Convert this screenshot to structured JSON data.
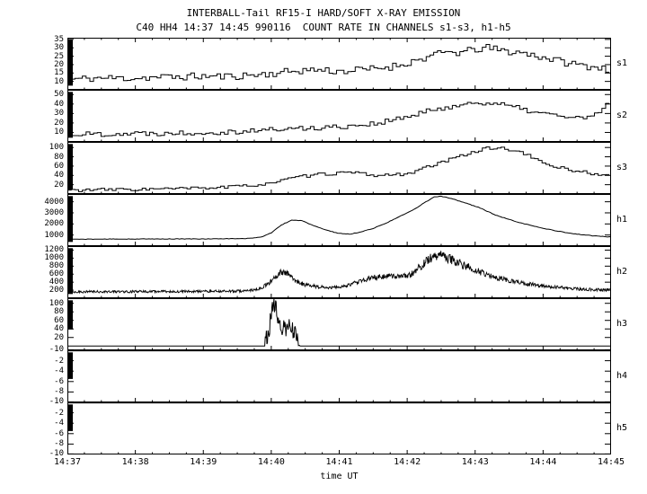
{
  "chart_data": {
    "type": "line",
    "title": "INTERBALL-Tail RF15-I HARD/SOFT X-RAY EMISSION",
    "subtitle": "C40 HH4 14:37 14:45 990116  COUNT RATE IN CHANNELS s1-s3, h1-h5",
    "xlabel": "time UT",
    "x_ticks": [
      "14:37",
      "14:38",
      "14:39",
      "14:40",
      "14:41",
      "14:42",
      "14:43",
      "14:44",
      "14:45"
    ],
    "x_range_minutes": [
      0,
      8
    ],
    "grid": false,
    "legend": "none",
    "panels": [
      {
        "label": "s1",
        "style": "step",
        "seed": 11,
        "ymin": 5,
        "ymax": 36,
        "yticks": [
          35,
          30,
          25,
          20,
          15,
          10
        ],
        "noise": 2.2,
        "bin": 0.055,
        "left_bar": [
          0.08,
          0.96
        ],
        "points": [
          [
            0,
            11
          ],
          [
            0.4,
            12
          ],
          [
            0.9,
            12
          ],
          [
            1.4,
            12.5
          ],
          [
            1.9,
            13
          ],
          [
            2.4,
            13
          ],
          [
            2.8,
            14
          ],
          [
            3.1,
            15
          ],
          [
            3.4,
            16.5
          ],
          [
            3.7,
            17
          ],
          [
            4,
            16
          ],
          [
            4.4,
            17
          ],
          [
            4.8,
            19
          ],
          [
            5.1,
            22
          ],
          [
            5.35,
            25
          ],
          [
            5.6,
            27.5
          ],
          [
            5.8,
            27
          ],
          [
            6,
            29
          ],
          [
            6.2,
            30
          ],
          [
            6.45,
            28
          ],
          [
            6.7,
            27
          ],
          [
            6.95,
            25
          ],
          [
            7.2,
            22.5
          ],
          [
            7.5,
            20
          ],
          [
            7.8,
            18.5
          ],
          [
            8,
            17
          ]
        ]
      },
      {
        "label": "s2",
        "style": "step",
        "seed": 22,
        "ymin": 0,
        "ymax": 55,
        "yticks": [
          50,
          40,
          30,
          20,
          10
        ],
        "noise": 2.8,
        "bin": 0.055,
        "left_bar": [
          0.08,
          0.96
        ],
        "points": [
          [
            0,
            8
          ],
          [
            0.5,
            8.5
          ],
          [
            1,
            9
          ],
          [
            1.5,
            9.5
          ],
          [
            2,
            10
          ],
          [
            2.5,
            11
          ],
          [
            3,
            13
          ],
          [
            3.5,
            14.5
          ],
          [
            4,
            16
          ],
          [
            4.3,
            18
          ],
          [
            4.6,
            20
          ],
          [
            5,
            26
          ],
          [
            5.3,
            32
          ],
          [
            5.6,
            37
          ],
          [
            5.9,
            40
          ],
          [
            6.1,
            42
          ],
          [
            6.35,
            40
          ],
          [
            6.6,
            36
          ],
          [
            7,
            30
          ],
          [
            7.3,
            27
          ],
          [
            7.6,
            25
          ],
          [
            7.85,
            30
          ],
          [
            8,
            43
          ]
        ]
      },
      {
        "label": "s3",
        "style": "step",
        "seed": 33,
        "ymin": 0,
        "ymax": 112,
        "yticks": [
          100,
          80,
          60,
          40,
          20
        ],
        "noise": 3.5,
        "bin": 0.055,
        "left_bar": [
          0.08,
          0.96
        ],
        "points": [
          [
            0,
            8
          ],
          [
            0.5,
            9
          ],
          [
            1,
            10
          ],
          [
            1.5,
            11
          ],
          [
            2,
            13
          ],
          [
            2.4,
            15
          ],
          [
            2.7,
            18
          ],
          [
            3,
            24
          ],
          [
            3.2,
            30
          ],
          [
            3.4,
            36
          ],
          [
            3.6,
            40
          ],
          [
            3.8,
            43
          ],
          [
            4,
            45
          ],
          [
            4.2,
            46
          ],
          [
            4.4,
            42
          ],
          [
            4.6,
            40
          ],
          [
            4.8,
            41
          ],
          [
            5,
            44
          ],
          [
            5.2,
            52
          ],
          [
            5.4,
            62
          ],
          [
            5.6,
            72
          ],
          [
            5.8,
            82
          ],
          [
            6,
            92
          ],
          [
            6.2,
            98
          ],
          [
            6.35,
            100
          ],
          [
            6.5,
            96
          ],
          [
            6.7,
            88
          ],
          [
            6.9,
            75
          ],
          [
            7.1,
            62
          ],
          [
            7.3,
            55
          ],
          [
            7.5,
            50
          ],
          [
            7.7,
            45
          ],
          [
            8,
            38
          ]
        ]
      },
      {
        "label": "h1",
        "style": "line",
        "seed": 44,
        "ymin": 0,
        "ymax": 4700,
        "yticks": [
          4000,
          3000,
          2000,
          1000
        ],
        "noise": 22,
        "sample": 0.025,
        "left_bar": [
          0.08,
          0.96
        ],
        "points": [
          [
            0,
            620
          ],
          [
            1,
            640
          ],
          [
            2,
            650
          ],
          [
            2.6,
            680
          ],
          [
            2.85,
            800
          ],
          [
            3,
            1200
          ],
          [
            3.15,
            1900
          ],
          [
            3.3,
            2350
          ],
          [
            3.45,
            2300
          ],
          [
            3.6,
            1900
          ],
          [
            3.8,
            1450
          ],
          [
            4,
            1150
          ],
          [
            4.15,
            1080
          ],
          [
            4.3,
            1250
          ],
          [
            4.5,
            1600
          ],
          [
            4.7,
            2100
          ],
          [
            4.9,
            2700
          ],
          [
            5.1,
            3300
          ],
          [
            5.25,
            3900
          ],
          [
            5.4,
            4450
          ],
          [
            5.5,
            4500
          ],
          [
            5.65,
            4300
          ],
          [
            5.85,
            3900
          ],
          [
            6.05,
            3500
          ],
          [
            6.3,
            2800
          ],
          [
            6.6,
            2200
          ],
          [
            7,
            1600
          ],
          [
            7.4,
            1150
          ],
          [
            7.7,
            950
          ],
          [
            8,
            820
          ]
        ]
      },
      {
        "label": "h2",
        "style": "fuzzy",
        "seed": 55,
        "ymin": 0,
        "ymax": 1300,
        "yticks": [
          1200,
          1000,
          800,
          600,
          400,
          200
        ],
        "noise_base": 12,
        "noise_frac": 0.11,
        "sample": 0.008,
        "left_bar": [
          0.08,
          0.96
        ],
        "points": [
          [
            0,
            160
          ],
          [
            1,
            165
          ],
          [
            2,
            170
          ],
          [
            2.6,
            180
          ],
          [
            2.8,
            220
          ],
          [
            2.95,
            350
          ],
          [
            3.05,
            520
          ],
          [
            3.15,
            650
          ],
          [
            3.25,
            600
          ],
          [
            3.35,
            450
          ],
          [
            3.5,
            330
          ],
          [
            3.7,
            280
          ],
          [
            3.9,
            270
          ],
          [
            4.1,
            300
          ],
          [
            4.3,
            420
          ],
          [
            4.5,
            520
          ],
          [
            4.7,
            560
          ],
          [
            4.9,
            540
          ],
          [
            5.05,
            580
          ],
          [
            5.2,
            800
          ],
          [
            5.3,
            950
          ],
          [
            5.4,
            1050
          ],
          [
            5.5,
            1080
          ],
          [
            5.6,
            1000
          ],
          [
            5.8,
            850
          ],
          [
            6,
            700
          ],
          [
            6.3,
            520
          ],
          [
            6.6,
            400
          ],
          [
            7,
            300
          ],
          [
            7.5,
            230
          ],
          [
            8,
            200
          ]
        ]
      },
      {
        "label": "h3",
        "style": "burst",
        "seed": 66,
        "ymin": -10,
        "ymax": 112,
        "yticks": [
          100,
          80,
          60,
          40,
          20,
          -10
        ],
        "noise": 22,
        "sample": 0.008,
        "left_bar": [
          0.4,
          0.96
        ],
        "points": [
          [
            0,
            0
          ],
          [
            2.88,
            0
          ],
          [
            2.92,
            15
          ],
          [
            2.97,
            45
          ],
          [
            3.02,
            85
          ],
          [
            3.06,
            100
          ],
          [
            3.1,
            70
          ],
          [
            3.15,
            45
          ],
          [
            3.2,
            35
          ],
          [
            3.27,
            50
          ],
          [
            3.33,
            35
          ],
          [
            3.38,
            15
          ],
          [
            3.42,
            0
          ],
          [
            8,
            0
          ]
        ]
      },
      {
        "label": "h4",
        "style": "flat",
        "seed": 77,
        "ymin": -10,
        "ymax": 0,
        "yticks": [
          -2,
          -4,
          -6,
          -8,
          -10
        ],
        "value": 0,
        "left_bar": [
          0.45,
          0.96
        ],
        "points": [
          [
            0,
            0
          ],
          [
            8,
            0
          ]
        ]
      },
      {
        "label": "h5",
        "style": "flat",
        "seed": 88,
        "ymin": -10,
        "ymax": 0,
        "yticks": [
          -2,
          -4,
          -6,
          -8,
          -10
        ],
        "value": 0,
        "left_bar": [
          0.45,
          0.96
        ],
        "points": [
          [
            0,
            0
          ],
          [
            8,
            0
          ]
        ]
      }
    ]
  }
}
